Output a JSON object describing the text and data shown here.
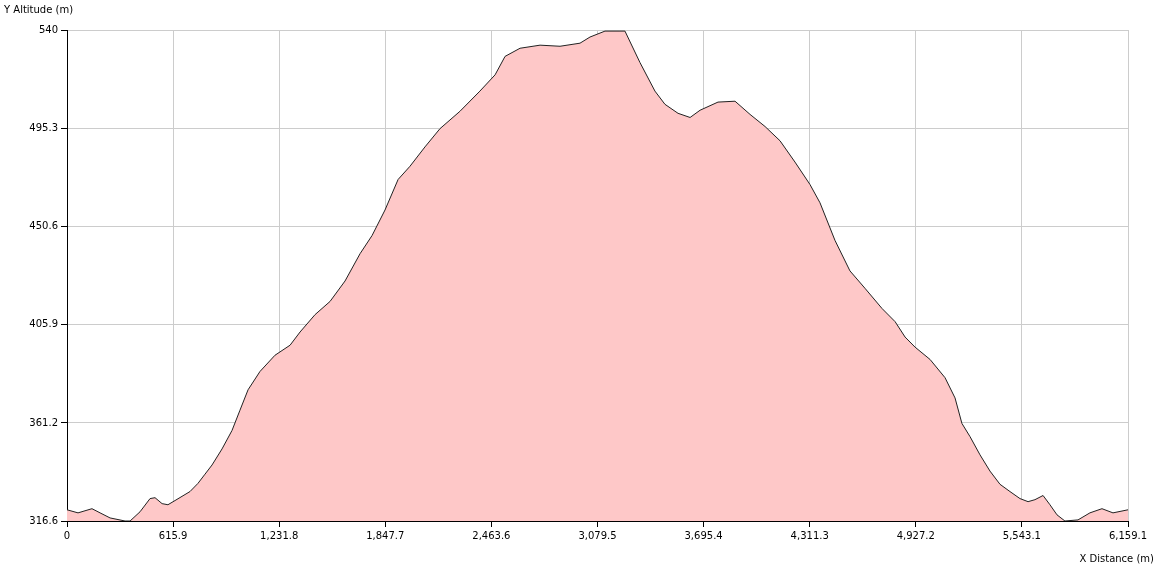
{
  "chart_data": {
    "type": "area",
    "xlabel": "X Distance (m)",
    "ylabel": "Y Altitude (m)",
    "x": [
      0,
      64,
      145,
      192,
      250,
      337,
      366,
      424,
      482,
      511,
      552,
      586,
      627,
      714,
      760,
      801,
      842,
      900,
      958,
      1004,
      1051,
      1120,
      1207,
      1295,
      1353,
      1440,
      1527,
      1614,
      1701,
      1771,
      1846,
      1922,
      1991,
      2078,
      2165,
      2281,
      2397,
      2485,
      2543,
      2630,
      2746,
      2862,
      2978,
      3036,
      3123,
      3210,
      3239,
      3326,
      3413,
      3471,
      3547,
      3617,
      3675,
      3779,
      3878,
      3965,
      4052,
      4139,
      4226,
      4313,
      4371,
      4458,
      4545,
      4632,
      4731,
      4807,
      4865,
      4923,
      5010,
      5097,
      5155,
      5195,
      5242,
      5300,
      5358,
      5416,
      5474,
      5532,
      5579,
      5619,
      5666,
      5706,
      5747,
      5793,
      5869,
      5938,
      6008,
      6072,
      6159.1
    ],
    "series": [
      {
        "color": "#fec8c8",
        "values": [
          321.7,
          320.3,
          322.2,
          320.3,
          318.0,
          316.6,
          316.6,
          320.8,
          326.8,
          327.2,
          324.5,
          324.0,
          325.9,
          330.0,
          333.7,
          337.9,
          342.1,
          349.4,
          357.8,
          367.0,
          376.3,
          384.6,
          392.0,
          396.6,
          402.6,
          410.5,
          416.5,
          425.8,
          438.2,
          446.5,
          458.1,
          472.0,
          478.0,
          486.8,
          495.1,
          503.0,
          512.2,
          519.6,
          528.0,
          531.7,
          533.1,
          532.6,
          534.0,
          536.8,
          539.5,
          539.5,
          539.5,
          525.2,
          512.2,
          506.2,
          502.1,
          500.2,
          503.5,
          507.2,
          507.6,
          501.6,
          496.1,
          489.6,
          479.9,
          469.7,
          461.4,
          444.3,
          430.4,
          422.5,
          413.3,
          407.3,
          400.3,
          395.7,
          390.1,
          381.8,
          372.6,
          361.0,
          355.0,
          346.7,
          339.3,
          333.3,
          330.0,
          326.8,
          325.4,
          326.3,
          328.2,
          324.0,
          319.4,
          316.6,
          317.1,
          320.3,
          322.2,
          320.3,
          321.7
        ]
      }
    ],
    "xlim": [
      0,
      6159.1
    ],
    "xticks": [
      0,
      615.9,
      {
        "value": 1231.8,
        "label": "1,231.8"
      },
      {
        "value": 1847.7,
        "label": "1,847.7"
      },
      {
        "value": 2463.6,
        "label": "2,463.6"
      },
      {
        "value": 3079.5,
        "label": "3,079.5"
      },
      {
        "value": 3695.4,
        "label": "3,695.4"
      },
      {
        "value": 4311.3,
        "label": "4,311.3"
      },
      {
        "value": 4927.2,
        "label": "4,927.2"
      },
      {
        "value": 5543.1,
        "label": "5,543.1"
      },
      {
        "value": 6159.1,
        "label": "6,159.1"
      }
    ],
    "ylim": [
      316.6,
      540
    ],
    "yticks": [
      316.6,
      361.2,
      405.9,
      450.6,
      495.3,
      540
    ],
    "grid": true,
    "legend": false,
    "marker": "none",
    "line_style": "solid"
  }
}
